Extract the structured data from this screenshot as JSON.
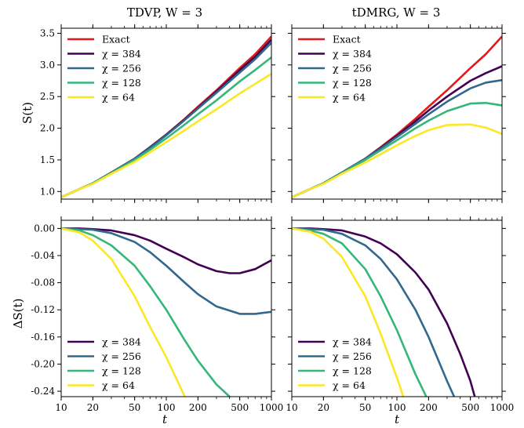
{
  "figure": {
    "top_left_title": "TDVP, W = 3",
    "top_right_title": "tDMRG, W = 3",
    "top_ylabel": "S(t)",
    "bottom_ylabel": "ΔS(t)",
    "xlabel": "t"
  },
  "chart_data": [
    {
      "type": "line",
      "panel": "top-left",
      "title": "TDVP, W = 3",
      "xlabel": "",
      "ylabel": "S(t)",
      "xscale": "log",
      "xlim": [
        10,
        1000
      ],
      "ylim": [
        0.88,
        3.58
      ],
      "x_ticks": [
        10,
        20,
        50,
        100,
        200,
        500,
        1000
      ],
      "y_ticks": [
        1.0,
        1.5,
        2.0,
        2.5,
        3.0,
        3.5
      ],
      "y_tick_labels": [
        "1.0",
        "1.5",
        "2.0",
        "2.5",
        "3.0",
        "3.5"
      ],
      "legend_position": "top-left",
      "x": [
        10,
        15,
        20,
        30,
        50,
        70,
        100,
        150,
        200,
        300,
        500,
        700,
        1000
      ],
      "series": [
        {
          "name": "Exact",
          "color": "#e31a1c",
          "values": [
            0.91,
            1.04,
            1.13,
            1.3,
            1.52,
            1.7,
            1.9,
            2.15,
            2.34,
            2.6,
            2.95,
            3.17,
            3.45
          ]
        },
        {
          "name": "χ = 384",
          "color": "#440154",
          "values": [
            0.91,
            1.04,
            1.13,
            1.3,
            1.52,
            1.7,
            1.9,
            2.14,
            2.32,
            2.58,
            2.92,
            3.13,
            3.4
          ]
        },
        {
          "name": "χ = 256",
          "color": "#31688e",
          "values": [
            0.91,
            1.04,
            1.13,
            1.3,
            1.52,
            1.69,
            1.89,
            2.13,
            2.31,
            2.56,
            2.88,
            3.09,
            3.35
          ]
        },
        {
          "name": "χ = 128",
          "color": "#35b779",
          "values": [
            0.91,
            1.04,
            1.13,
            1.29,
            1.5,
            1.66,
            1.84,
            2.06,
            2.22,
            2.44,
            2.74,
            2.92,
            3.12
          ]
        },
        {
          "name": "χ = 64",
          "color": "#fde725",
          "values": [
            0.91,
            1.04,
            1.12,
            1.28,
            1.47,
            1.62,
            1.78,
            1.97,
            2.11,
            2.3,
            2.55,
            2.7,
            2.86
          ]
        }
      ]
    },
    {
      "type": "line",
      "panel": "top-right",
      "title": "tDMRG, W = 3",
      "xlabel": "",
      "ylabel": "",
      "xscale": "log",
      "xlim": [
        10,
        1000
      ],
      "ylim": [
        0.88,
        3.58
      ],
      "x_ticks": [
        10,
        20,
        50,
        100,
        200,
        500,
        1000
      ],
      "y_ticks": [
        1.0,
        1.5,
        2.0,
        2.5,
        3.0,
        3.5
      ],
      "legend_position": "top-left",
      "x": [
        10,
        15,
        20,
        30,
        50,
        70,
        100,
        150,
        200,
        300,
        500,
        700,
        1000
      ],
      "series": [
        {
          "name": "Exact",
          "color": "#e31a1c",
          "values": [
            0.91,
            1.04,
            1.13,
            1.3,
            1.52,
            1.7,
            1.9,
            2.15,
            2.34,
            2.6,
            2.95,
            3.17,
            3.45
          ]
        },
        {
          "name": "χ = 384",
          "color": "#440154",
          "values": [
            0.91,
            1.04,
            1.13,
            1.3,
            1.52,
            1.69,
            1.88,
            2.11,
            2.28,
            2.5,
            2.75,
            2.87,
            2.98
          ]
        },
        {
          "name": "χ = 256",
          "color": "#31688e",
          "values": [
            0.91,
            1.04,
            1.13,
            1.3,
            1.52,
            1.68,
            1.86,
            2.07,
            2.22,
            2.42,
            2.63,
            2.72,
            2.76
          ]
        },
        {
          "name": "χ = 128",
          "color": "#35b779",
          "values": [
            0.91,
            1.04,
            1.13,
            1.29,
            1.5,
            1.65,
            1.81,
            2.0,
            2.12,
            2.27,
            2.39,
            2.4,
            2.36
          ]
        },
        {
          "name": "χ = 64",
          "color": "#fde725",
          "values": [
            0.91,
            1.04,
            1.12,
            1.28,
            1.46,
            1.59,
            1.73,
            1.88,
            1.97,
            2.05,
            2.06,
            2.01,
            1.91
          ]
        }
      ]
    },
    {
      "type": "line",
      "panel": "bottom-left",
      "title": "",
      "xlabel": "t",
      "ylabel": "ΔS(t)",
      "xscale": "log",
      "xlim": [
        10,
        1000
      ],
      "ylim": [
        -0.248,
        0.012
      ],
      "x_ticks": [
        10,
        20,
        50,
        100,
        200,
        500,
        1000
      ],
      "x_tick_labels": [
        "10",
        "20",
        "50",
        "100",
        "200",
        "500",
        "1000"
      ],
      "y_ticks": [
        0.0,
        -0.04,
        -0.08,
        -0.12,
        -0.16,
        -0.2,
        -0.24
      ],
      "y_tick_labels": [
        "0.00",
        "-0.04",
        "-0.08",
        "-0.12",
        "-0.16",
        "-0.20",
        "-0.24"
      ],
      "legend_position": "bottom-left",
      "series": [
        {
          "name": "χ = 384",
          "color": "#440154",
          "x": [
            10,
            15,
            20,
            30,
            50,
            70,
            100,
            150,
            200,
            300,
            400,
            500,
            700,
            1000
          ],
          "values": [
            0.0,
            0.0,
            -0.001,
            -0.003,
            -0.01,
            -0.018,
            -0.03,
            -0.043,
            -0.053,
            -0.063,
            -0.066,
            -0.066,
            -0.06,
            -0.047
          ]
        },
        {
          "name": "χ = 256",
          "color": "#31688e",
          "x": [
            10,
            15,
            20,
            30,
            50,
            70,
            100,
            150,
            200,
            300,
            500,
            700,
            1000
          ],
          "values": [
            0.0,
            -0.001,
            -0.002,
            -0.007,
            -0.02,
            -0.035,
            -0.055,
            -0.08,
            -0.097,
            -0.115,
            -0.126,
            -0.126,
            -0.123
          ]
        },
        {
          "name": "χ = 128",
          "color": "#35b779",
          "x": [
            10,
            15,
            20,
            30,
            50,
            70,
            100,
            150,
            200,
            300,
            400
          ],
          "values": [
            0.0,
            -0.003,
            -0.01,
            -0.025,
            -0.055,
            -0.085,
            -0.12,
            -0.165,
            -0.195,
            -0.23,
            -0.248
          ]
        },
        {
          "name": "χ = 64",
          "color": "#fde725",
          "x": [
            10,
            15,
            20,
            30,
            50,
            70,
            100,
            150
          ],
          "values": [
            0.0,
            -0.006,
            -0.018,
            -0.045,
            -0.1,
            -0.145,
            -0.19,
            -0.248
          ]
        }
      ]
    },
    {
      "type": "line",
      "panel": "bottom-right",
      "title": "",
      "xlabel": "t",
      "ylabel": "",
      "xscale": "log",
      "xlim": [
        10,
        1000
      ],
      "ylim": [
        -0.248,
        0.012
      ],
      "x_ticks": [
        10,
        20,
        50,
        100,
        200,
        500,
        1000
      ],
      "x_tick_labels": [
        "10",
        "20",
        "50",
        "100",
        "200",
        "500",
        "1000"
      ],
      "y_ticks": [
        0.0,
        -0.04,
        -0.08,
        -0.12,
        -0.16,
        -0.2,
        -0.24
      ],
      "legend_position": "bottom-left",
      "series": [
        {
          "name": "χ = 384",
          "color": "#440154",
          "x": [
            10,
            15,
            20,
            30,
            50,
            70,
            100,
            150,
            200,
            300,
            400,
            500,
            550
          ],
          "values": [
            0.0,
            0.0,
            -0.001,
            -0.003,
            -0.012,
            -0.022,
            -0.038,
            -0.065,
            -0.09,
            -0.14,
            -0.185,
            -0.225,
            -0.248
          ]
        },
        {
          "name": "χ = 256",
          "color": "#31688e",
          "x": [
            10,
            15,
            20,
            30,
            50,
            70,
            100,
            150,
            200,
            300,
            350
          ],
          "values": [
            0.0,
            -0.001,
            -0.002,
            -0.008,
            -0.025,
            -0.045,
            -0.075,
            -0.12,
            -0.16,
            -0.225,
            -0.248
          ]
        },
        {
          "name": "χ = 128",
          "color": "#35b779",
          "x": [
            10,
            15,
            20,
            30,
            50,
            70,
            100,
            150,
            190
          ],
          "values": [
            0.0,
            -0.003,
            -0.008,
            -0.022,
            -0.06,
            -0.1,
            -0.15,
            -0.215,
            -0.248
          ]
        },
        {
          "name": "χ = 64",
          "color": "#fde725",
          "x": [
            10,
            15,
            20,
            30,
            50,
            70,
            100,
            115
          ],
          "values": [
            0.0,
            -0.005,
            -0.015,
            -0.042,
            -0.1,
            -0.155,
            -0.22,
            -0.248
          ]
        }
      ]
    }
  ]
}
